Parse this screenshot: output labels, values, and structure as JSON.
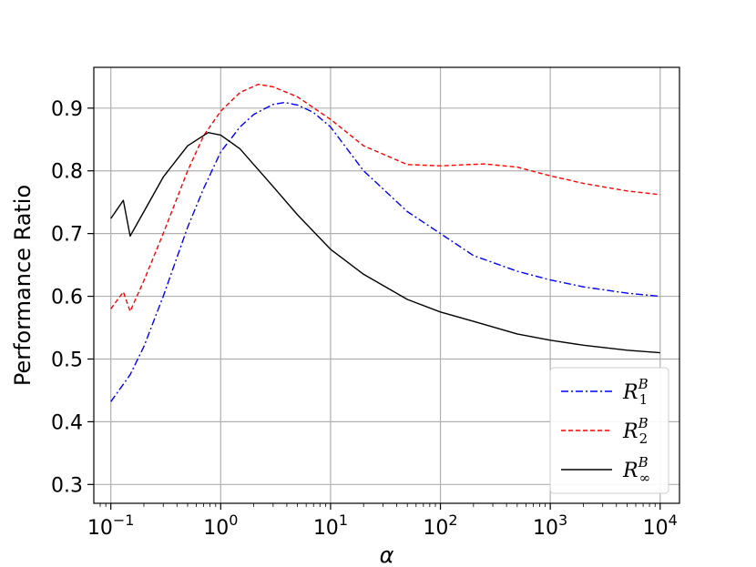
{
  "chart_data": {
    "type": "line",
    "title": "",
    "xlabel": "α",
    "ylabel": "Performance Ratio",
    "xscale": "log",
    "xlim": [
      0.07,
      15000
    ],
    "ylim": [
      0.27,
      0.965
    ],
    "grid": true,
    "legend_position": "lower-right",
    "x_ticks": [
      {
        "value": 0.1,
        "base": "10",
        "exp": "−1"
      },
      {
        "value": 1,
        "base": "10",
        "exp": "0"
      },
      {
        "value": 10,
        "base": "10",
        "exp": "1"
      },
      {
        "value": 100,
        "base": "10",
        "exp": "2"
      },
      {
        "value": 1000,
        "base": "10",
        "exp": "3"
      },
      {
        "value": 10000,
        "base": "10",
        "exp": "4"
      }
    ],
    "y_ticks": [
      {
        "value": 0.3,
        "label": "0.3"
      },
      {
        "value": 0.4,
        "label": "0.4"
      },
      {
        "value": 0.5,
        "label": "0.5"
      },
      {
        "value": 0.6,
        "label": "0.6"
      },
      {
        "value": 0.7,
        "label": "0.7"
      },
      {
        "value": 0.8,
        "label": "0.8"
      },
      {
        "value": 0.9,
        "label": "0.9"
      }
    ],
    "series": [
      {
        "name": "R_1^B",
        "legend_main": "R",
        "legend_sup": "B",
        "legend_sub": "1",
        "color": "#0000ff",
        "dash": "8,3,2,3",
        "x": [
          0.1,
          0.15,
          0.2,
          0.3,
          0.5,
          0.7,
          1,
          1.5,
          2,
          3,
          3.8,
          5,
          7,
          10,
          20,
          50,
          100,
          200,
          500,
          1000,
          2000,
          5000,
          10000
        ],
        "y": [
          0.432,
          0.475,
          0.52,
          0.6,
          0.71,
          0.772,
          0.83,
          0.87,
          0.89,
          0.906,
          0.909,
          0.905,
          0.893,
          0.87,
          0.8,
          0.735,
          0.7,
          0.665,
          0.64,
          0.626,
          0.615,
          0.605,
          0.6
        ]
      },
      {
        "name": "R_2^B",
        "legend_main": "R",
        "legend_sup": "B",
        "legend_sub": "2",
        "color": "#ff0000",
        "dash": "5,3",
        "x": [
          0.1,
          0.13,
          0.15,
          0.2,
          0.3,
          0.5,
          0.7,
          1,
          1.5,
          2.2,
          3,
          5,
          10,
          20,
          50,
          100,
          250,
          500,
          1000,
          2000,
          5000,
          10000
        ],
        "y": [
          0.58,
          0.607,
          0.576,
          0.625,
          0.7,
          0.8,
          0.856,
          0.895,
          0.925,
          0.938,
          0.934,
          0.918,
          0.882,
          0.84,
          0.81,
          0.808,
          0.811,
          0.806,
          0.792,
          0.78,
          0.768,
          0.762
        ]
      },
      {
        "name": "R_∞^B",
        "legend_main": "R",
        "legend_sup": "B",
        "legend_sub": "∞",
        "color": "#000000",
        "dash": "",
        "x": [
          0.1,
          0.13,
          0.15,
          0.2,
          0.3,
          0.5,
          0.77,
          1,
          1.5,
          2,
          3,
          5,
          10,
          20,
          50,
          100,
          200,
          500,
          1000,
          2000,
          5000,
          10000
        ],
        "y": [
          0.724,
          0.753,
          0.696,
          0.735,
          0.79,
          0.84,
          0.861,
          0.857,
          0.835,
          0.81,
          0.775,
          0.73,
          0.675,
          0.635,
          0.595,
          0.575,
          0.56,
          0.54,
          0.53,
          0.522,
          0.514,
          0.51
        ]
      }
    ]
  }
}
